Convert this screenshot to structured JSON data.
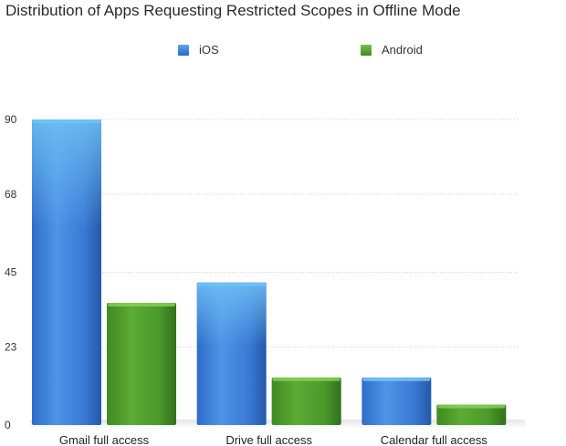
{
  "chart_data": {
    "type": "bar",
    "title": "Distribution of Apps Requesting Restricted Scopes in Offline Mode",
    "categories": [
      "Gmail full access",
      "Drive full access",
      "Calendar full access"
    ],
    "series": [
      {
        "name": "iOS",
        "values": [
          90,
          42,
          14
        ],
        "color": "#3d7fd6"
      },
      {
        "name": "Android",
        "values": [
          36,
          14,
          6
        ],
        "color": "#4f9e2c"
      }
    ],
    "yticks": [
      "0",
      "23",
      "45",
      "68",
      "90"
    ],
    "ylim": [
      0,
      90
    ],
    "grid": true,
    "legend_position": "top"
  }
}
